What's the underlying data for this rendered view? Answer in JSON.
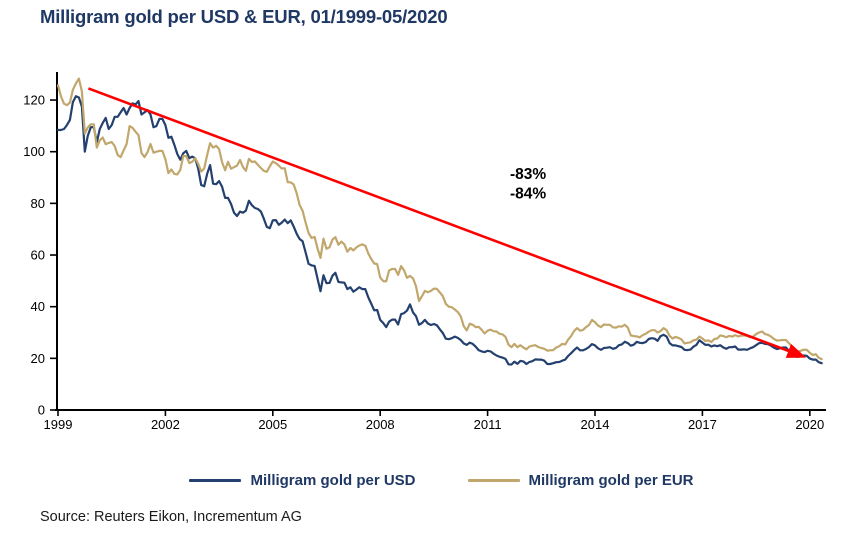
{
  "title": "Milligram gold per USD & EUR, 01/1999-05/2020",
  "source": "Source: Reuters Eikon, Incrementum AG",
  "legend": {
    "usd": "Milligram gold per USD",
    "eur": "Milligram gold per EUR"
  },
  "colors": {
    "usd": "#24406e",
    "eur": "#c1a76c",
    "trend": "#ff0000",
    "axis": "#000000",
    "title": "#1f3864"
  },
  "chart_data": {
    "type": "line",
    "title": "Milligram gold per USD & EUR, 01/1999-05/2020",
    "xlabel": "",
    "ylabel": "",
    "x_start": 1999.0,
    "x_step": 0.0833333,
    "x_ticks": [
      1999,
      2002,
      2005,
      2008,
      2011,
      2014,
      2017,
      2020
    ],
    "y_ticks": [
      0,
      20,
      40,
      60,
      80,
      100,
      120
    ],
    "xlim": [
      1999,
      2020.5
    ],
    "ylim": [
      0,
      131
    ],
    "grid": false,
    "legend_position": "bottom",
    "series": [
      {
        "name": "Milligram gold per USD",
        "color": "#24406e",
        "values": [
          108.4,
          108.4,
          108.8,
          110.3,
          112.3,
          119.2,
          121.5,
          121.0,
          117.4,
          100.0,
          106.2,
          109.5,
          109.5,
          103.7,
          108.8,
          111.1,
          113.1,
          108.8,
          110.3,
          113.5,
          113.5,
          115.2,
          116.9,
          114.4,
          116.9,
          118.7,
          118.3,
          119.6,
          114.4,
          115.2,
          116.1,
          114.4,
          109.5,
          109.9,
          112.7,
          112.7,
          110.3,
          105.4,
          105.8,
          102.7,
          99.1,
          96.9,
          99.4,
          100.3,
          97.5,
          98.1,
          97.5,
          93.4,
          87.1,
          86.6,
          91.5,
          94.8,
          87.6,
          87.4,
          88.6,
          86.4,
          82.1,
          82.1,
          79.8,
          76.4,
          75.1,
          76.8,
          76.4,
          77.2,
          81.0,
          79.3,
          78.2,
          77.8,
          76.8,
          74.1,
          70.9,
          70.4,
          73.4,
          73.5,
          71.7,
          72.5,
          73.7,
          72.3,
          73.4,
          71.0,
          68.2,
          66.2,
          65.3,
          61.0,
          56.6,
          56.0,
          55.8,
          50.9,
          46.0,
          52.2,
          49.1,
          49.2,
          52.0,
          53.1,
          49.6,
          49.4,
          49.3,
          46.8,
          47.5,
          45.8,
          46.6,
          47.5,
          46.8,
          46.8,
          43.6,
          41.2,
          38.6,
          38.7,
          34.9,
          33.7,
          32.1,
          34.2,
          35.0,
          35.0,
          33.1,
          37.1,
          37.5,
          38.5,
          40.9,
          37.8,
          36.3,
          33.0,
          33.7,
          34.9,
          33.5,
          32.9,
          33.3,
          32.8,
          31.2,
          29.8,
          27.6,
          27.4,
          27.8,
          28.4,
          27.9,
          27.1,
          25.8,
          25.2,
          26.1,
          25.6,
          24.5,
          23.2,
          22.7,
          22.4,
          22.9,
          22.7,
          21.8,
          21.1,
          20.6,
          20.3,
          19.8,
          17.7,
          17.6,
          18.7,
          17.9,
          19.0,
          18.8,
          17.8,
          18.6,
          18.9,
          19.6,
          19.5,
          19.5,
          19.1,
          17.8,
          17.8,
          18.1,
          18.5,
          18.6,
          19.1,
          19.5,
          20.9,
          22.0,
          23.2,
          24.2,
          23.1,
          23.1,
          23.6,
          24.4,
          25.5,
          25.0,
          23.9,
          23.3,
          24.0,
          24.1,
          24.3,
          23.7,
          24.0,
          25.1,
          25.4,
          26.4,
          25.9,
          24.9,
          25.3,
          26.4,
          26.0,
          25.9,
          26.3,
          27.5,
          27.8,
          27.6,
          26.8,
          28.6,
          29.1,
          28.4,
          25.9,
          25.0,
          25.0,
          24.7,
          24.4,
          23.3,
          23.2,
          23.4,
          24.5,
          25.2,
          27.0,
          26.1,
          25.2,
          25.3,
          24.6,
          25.0,
          24.7,
          25.1,
          24.2,
          23.7,
          24.3,
          24.3,
          24.6,
          23.4,
          23.4,
          23.5,
          23.3,
          23.9,
          24.3,
          25.1,
          25.9,
          26.0,
          25.6,
          25.5,
          24.9,
          24.1,
          23.6,
          23.9,
          24.2,
          24.2,
          22.9,
          22.0,
          20.7,
          20.6,
          20.8,
          21.1,
          21.0,
          19.9,
          19.5,
          19.5,
          18.5,
          18.1
        ]
      },
      {
        "name": "Milligram gold per EUR",
        "color": "#c1a76c",
        "values": [
          125.7,
          121.4,
          118.6,
          118.0,
          119.0,
          124.0,
          126.4,
          128.3,
          123.3,
          107.0,
          109.4,
          110.6,
          110.6,
          101.6,
          104.4,
          105.5,
          102.9,
          103.4,
          103.7,
          102.2,
          98.7,
          97.9,
          100.5,
          103.0,
          109.9,
          109.2,
          107.7,
          106.4,
          99.5,
          97.9,
          99.8,
          103.0,
          99.6,
          100.0,
          100.3,
          100.3,
          97.1,
          91.7,
          93.1,
          91.4,
          91.2,
          93.0,
          98.4,
          98.3,
          95.6,
          96.1,
          97.5,
          95.3,
          92.3,
          93.5,
          98.8,
          103.3,
          101.6,
          102.3,
          101.0,
          95.9,
          92.8,
          96.1,
          93.4,
          94.0,
          94.6,
          96.8,
          94.0,
          92.6,
          97.2,
          96.0,
          96.2,
          94.9,
          93.7,
          92.6,
          92.2,
          94.3,
          96.2,
          95.6,
          94.6,
          93.5,
          93.6,
          88.2,
          88.1,
          87.3,
          83.9,
          79.4,
          77.1,
          72.6,
          68.5,
          66.6,
          67.0,
          62.6,
          58.9,
          66.3,
          62.4,
          63.0,
          66.0,
          66.9,
          64.0,
          65.2,
          64.1,
          61.3,
          62.7,
          61.8,
          62.9,
          63.7,
          64.1,
          63.6,
          60.6,
          58.5,
          56.7,
          56.5,
          51.3,
          49.9,
          49.8,
          54.0,
          54.6,
          54.6,
          52.3,
          55.7,
          54.0,
          51.2,
          51.9,
          51.0,
          47.9,
          42.2,
          44.1,
          46.1,
          45.6,
          46.1,
          47.0,
          46.9,
          45.5,
          44.1,
          41.1,
          40.0,
          39.8,
          38.9,
          37.9,
          36.3,
          32.5,
          30.8,
          33.4,
          33.0,
          32.1,
          32.2,
          31.1,
          29.6,
          30.7,
          31.1,
          30.5,
          30.4,
          29.5,
          29.3,
          28.3,
          25.3,
          24.3,
          25.6,
          24.3,
          25.1,
          24.2,
          23.5,
          24.6,
          24.9,
          25.1,
          24.4,
          24.0,
          23.7,
          23.0,
          23.1,
          23.2,
          24.2,
          24.7,
          25.6,
          25.4,
          27.2,
          28.6,
          30.6,
          31.7,
          30.7,
          31.0,
          32.1,
          32.9,
          34.9,
          34.0,
          32.7,
          32.1,
          33.1,
          33.0,
          33.0,
          32.0,
          31.9,
          32.4,
          32.3,
          33.0,
          31.9,
          28.9,
          28.6,
          28.5,
          28.1,
          29.0,
          29.5,
          30.3,
          30.9,
          30.9,
          30.0,
          30.6,
          31.7,
          30.9,
          28.7,
          27.7,
          28.3,
          27.9,
          27.3,
          25.8,
          26.0,
          26.2,
          27.0,
          27.2,
          28.4,
          27.7,
          26.7,
          27.0,
          26.3,
          27.5,
          27.7,
          28.9,
          28.6,
          28.2,
          28.7,
          28.4,
          29.0,
          28.5,
          28.8,
          28.9,
          28.7,
          28.2,
          28.4,
          29.4,
          30.0,
          30.4,
          29.4,
          29.1,
          28.4,
          27.5,
          26.9,
          27.0,
          27.1,
          27.1,
          25.9,
          24.6,
          23.0,
          22.6,
          22.9,
          23.4,
          23.3,
          22.1,
          21.3,
          21.6,
          20.2,
          19.7
        ]
      }
    ],
    "trend_arrow": {
      "x1": 1999.85,
      "y1": 124.5,
      "x2": 2019.9,
      "y2": 20.3,
      "color": "#ff0000"
    },
    "annotations": [
      {
        "text": "-83%",
        "x": 2012.13,
        "y": 89.4,
        "color": "#1f3864"
      },
      {
        "text": "-84%",
        "x": 2012.13,
        "y": 81.9,
        "color": "#c6a95f"
      }
    ]
  }
}
